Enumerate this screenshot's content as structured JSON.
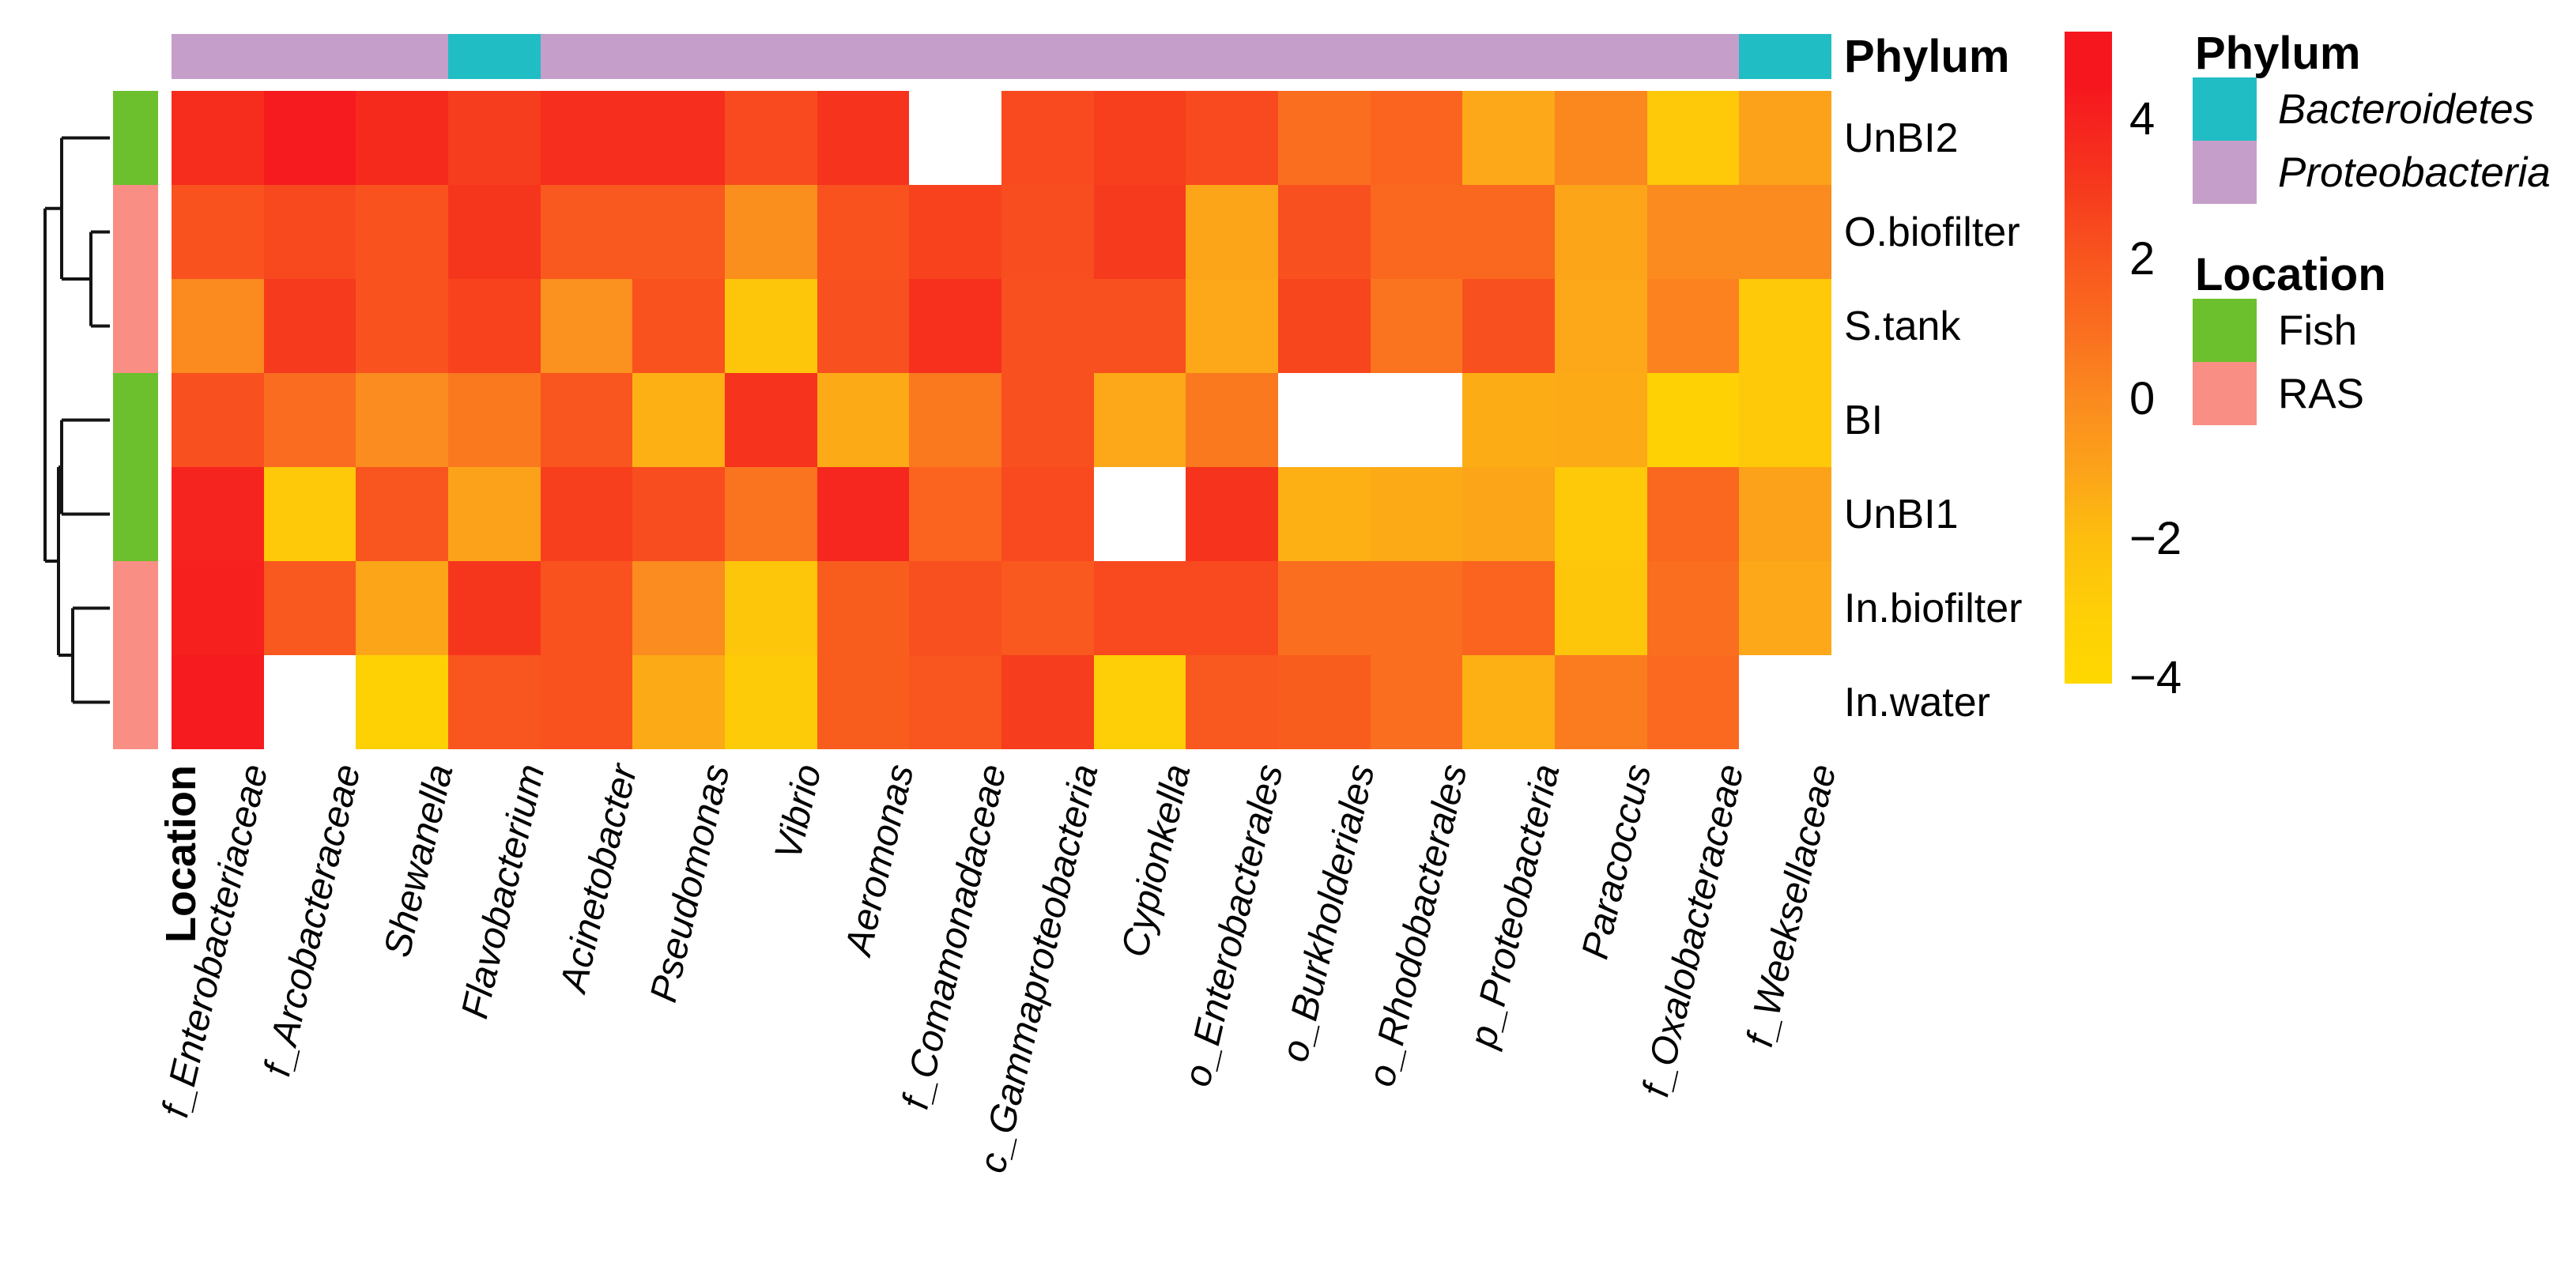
{
  "chart_data": {
    "type": "heatmap",
    "rows": [
      "UnBI2",
      "O.biofilter",
      "S.tank",
      "BI",
      "UnBI1",
      "In.biofilter",
      "In.water"
    ],
    "row_location": [
      "Fish",
      "RAS",
      "RAS",
      "Fish",
      "Fish",
      "RAS",
      "RAS"
    ],
    "columns": [
      "f_Enterobacteriaceae",
      "f_Arcobacteraceae",
      "Shewanella",
      "Flavobacterium",
      "Acinetobacter",
      "Pseudomonas",
      "Vibrio",
      "Aeromonas",
      "f_Comamonadaceae",
      "c_Gammaproteobacteria",
      "Cypionkella",
      "o_Enterobacterales",
      "o_Burkholderiales",
      "o_Rhodobacterales",
      "p_Proteobacteria",
      "Paracoccus",
      "f_Oxalobacteraceae",
      "f_Weeksellaceae"
    ],
    "column_phylum": [
      "Proteobacteria",
      "Proteobacteria",
      "Proteobacteria",
      "Bacteroidetes",
      "Proteobacteria",
      "Proteobacteria",
      "Proteobacteria",
      "Proteobacteria",
      "Proteobacteria",
      "Proteobacteria",
      "Proteobacteria",
      "Proteobacteria",
      "Proteobacteria",
      "Proteobacteria",
      "Proteobacteria",
      "Proteobacteria",
      "Proteobacteria",
      "Bacteroidetes"
    ],
    "values": [
      [
        3.6,
        4.3,
        3.7,
        2.9,
        3.5,
        3.5,
        2.4,
        3.3,
        null,
        2.4,
        2.8,
        2.4,
        1.0,
        1.4,
        -1.2,
        0.1,
        -2.7,
        -1.0
      ],
      [
        2.1,
        2.5,
        2.1,
        3.2,
        1.9,
        1.9,
        -0.2,
        2.1,
        2.7,
        2.3,
        3.0,
        -1.1,
        2.2,
        1.3,
        1.3,
        -1.1,
        0.0,
        0.0
      ],
      [
        0.0,
        3.0,
        2.1,
        2.7,
        -0.3,
        2.1,
        -2.5,
        2.2,
        3.4,
        2.2,
        2.2,
        -1.2,
        2.6,
        0.8,
        2.2,
        -1.2,
        0.3,
        -2.7
      ],
      [
        2.2,
        1.1,
        -0.1,
        0.6,
        2.0,
        -1.5,
        3.3,
        -1.3,
        0.6,
        2.2,
        -1.2,
        0.6,
        null,
        null,
        -1.4,
        -1.3,
        -3.4,
        -2.7
      ],
      [
        3.9,
        -2.7,
        2.0,
        -1.0,
        2.8,
        2.3,
        0.8,
        3.8,
        1.4,
        2.4,
        null,
        3.3,
        -1.5,
        -1.3,
        -1.1,
        -2.7,
        1.3,
        -1.0
      ],
      [
        4.1,
        1.9,
        -1.1,
        3.2,
        2.1,
        -0.1,
        -2.5,
        1.7,
        2.2,
        1.9,
        2.4,
        2.4,
        1.0,
        1.0,
        1.4,
        -2.5,
        1.0,
        -1.2
      ],
      [
        4.3,
        null,
        -3.4,
        2.0,
        2.1,
        -1.3,
        -2.8,
        1.7,
        2.0,
        2.9,
        -3.2,
        1.9,
        1.7,
        1.0,
        -1.5,
        0.5,
        1.2,
        null
      ]
    ],
    "na_color": "#FFFFFF",
    "color_anchors": [
      [
        -4.5,
        "#FFD800"
      ],
      [
        -3,
        "#FECE07"
      ],
      [
        -2,
        "#FDBE0E"
      ],
      [
        -1,
        "#FCA21A"
      ],
      [
        0,
        "#FB8A1F"
      ],
      [
        1,
        "#FA6E1F"
      ],
      [
        2,
        "#F9551E"
      ],
      [
        3,
        "#F63A1D"
      ],
      [
        4.5,
        "#F6161E"
      ]
    ],
    "colorbar": {
      "ticks": [
        4,
        2,
        0,
        -2,
        -4
      ],
      "tick_labels": [
        "4",
        "2",
        "0",
        "−2",
        "−4"
      ],
      "top_value": 5.25,
      "bottom_value": -4.08
    },
    "dendrogram_newick": "((UnBI2,(O.biofilter,S.tank)),((BI,UnBI1),(In.biofilter,In.water)))",
    "legend_position": "right",
    "grid": false
  },
  "annotation": {
    "phylum_bar_title": "Phylum",
    "location_bar_title": "Location",
    "phylum_colors": {
      "Bacteroidetes": "#21BDC5",
      "Proteobacteria": "#C59FC9"
    },
    "location_colors": {
      "Fish": "#6CBF2D",
      "RAS": "#F98E84"
    }
  },
  "legend": {
    "phylum": {
      "title": "Phylum",
      "items": [
        {
          "label": "Bacteroidetes",
          "color": "#21BDC5",
          "italic": true
        },
        {
          "label": "Proteobacteria",
          "color": "#C59FC9",
          "italic": true
        }
      ]
    },
    "location": {
      "title": "Location",
      "items": [
        {
          "label": "Fish",
          "color": "#6CBF2D",
          "italic": false
        },
        {
          "label": "RAS",
          "color": "#F98E84",
          "italic": false
        }
      ]
    }
  },
  "dendrogram_style": {
    "stroke": "#141414",
    "stroke_width": 4
  }
}
